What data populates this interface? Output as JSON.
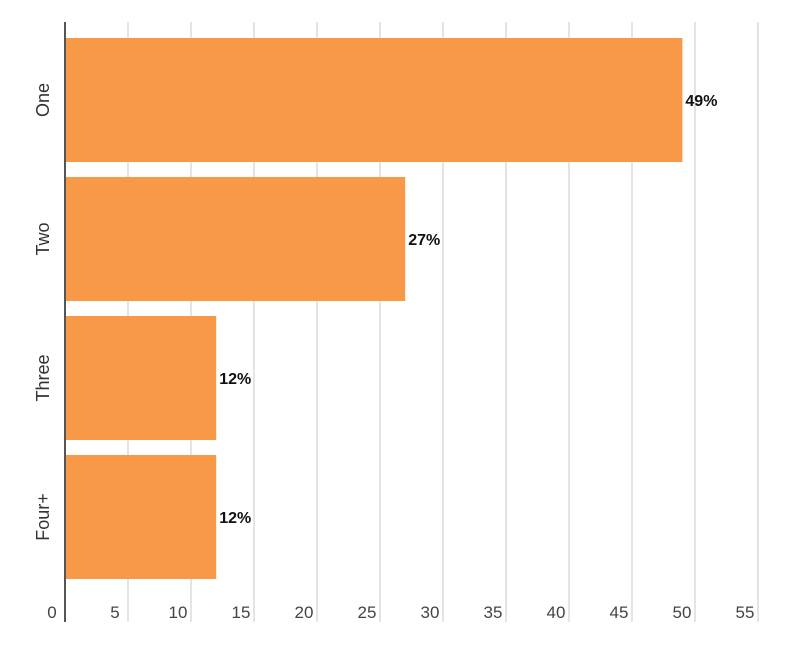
{
  "chart_data": {
    "type": "bar",
    "orientation": "horizontal",
    "title": "",
    "xlabel": "",
    "ylabel": "",
    "categories": [
      "One",
      "Two",
      "Three",
      "Four+"
    ],
    "values": [
      49,
      27,
      12,
      12
    ],
    "value_labels": [
      "49%",
      "27%",
      "12%",
      "12%"
    ],
    "xlim": [
      0,
      55
    ],
    "x_ticks": [
      0,
      5,
      10,
      15,
      20,
      25,
      30,
      35,
      40,
      45,
      50,
      55
    ],
    "x_tick_labels": [
      "0",
      "5",
      "10",
      "15",
      "20",
      "25",
      "30",
      "35",
      "40",
      "45",
      "50",
      "55"
    ],
    "grid": true,
    "legend": "none",
    "bar_color": "#f79947",
    "grid_color": "#c8c8c8",
    "axis_color": "#555555"
  }
}
